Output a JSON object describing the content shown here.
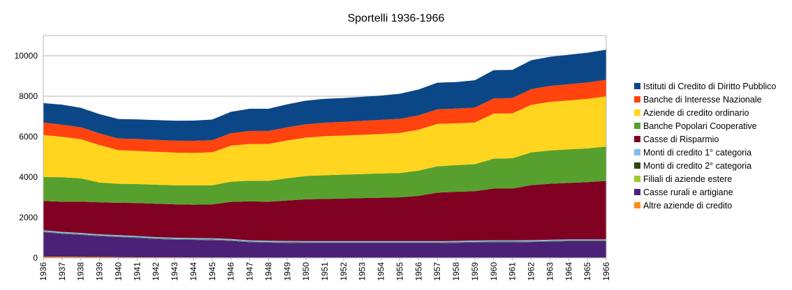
{
  "chart_data": {
    "type": "area",
    "stacked": true,
    "title": "Sportelli 1936-1966",
    "xlabel": "",
    "ylabel": "",
    "ylim": [
      0,
      11000
    ],
    "yticks": [
      0,
      2000,
      4000,
      6000,
      8000,
      10000
    ],
    "grid": "horizontal",
    "legend_position": "right",
    "categories": [
      "1936",
      "1937",
      "1938",
      "1939",
      "1940",
      "1941",
      "1942",
      "1943",
      "1944",
      "1945",
      "1946",
      "1947",
      "1948",
      "1949",
      "1950",
      "1951",
      "1952",
      "1953",
      "1954",
      "1955",
      "1956",
      "1957",
      "1958",
      "1959",
      "1960",
      "1961",
      "1962",
      "1963",
      "1964",
      "1965",
      "1966"
    ],
    "series": [
      {
        "name": "Altre aziende di credito",
        "color": "#ff8c1a",
        "values": [
          60,
          60,
          55,
          50,
          40,
          35,
          30,
          30,
          25,
          25,
          20,
          20,
          20,
          20,
          20,
          20,
          20,
          20,
          20,
          20,
          20,
          20,
          20,
          20,
          20,
          20,
          20,
          20,
          20,
          20,
          20
        ]
      },
      {
        "name": "Casse rurali e artigiane",
        "color": "#4b2077",
        "values": [
          1220,
          1140,
          1090,
          1030,
          1000,
          960,
          910,
          880,
          870,
          860,
          830,
          760,
          740,
          730,
          720,
          720,
          720,
          720,
          720,
          720,
          720,
          720,
          730,
          750,
          760,
          760,
          770,
          790,
          810,
          810,
          810
        ]
      },
      {
        "name": "Filiali di aziende estere",
        "color": "#a3c72e",
        "values": [
          10,
          10,
          10,
          10,
          10,
          10,
          10,
          10,
          10,
          10,
          10,
          10,
          10,
          10,
          10,
          10,
          10,
          10,
          10,
          10,
          10,
          10,
          10,
          10,
          10,
          10,
          10,
          10,
          10,
          10,
          10
        ]
      },
      {
        "name": "Monti di credito 2° categoria",
        "color": "#2e4a12",
        "values": [
          20,
          20,
          20,
          20,
          20,
          20,
          20,
          20,
          20,
          20,
          20,
          20,
          20,
          20,
          20,
          20,
          20,
          20,
          20,
          20,
          20,
          20,
          20,
          20,
          20,
          20,
          20,
          20,
          20,
          20,
          20
        ]
      },
      {
        "name": "Monti di credito 1° categoria",
        "color": "#7dbdf0",
        "values": [
          60,
          60,
          60,
          60,
          60,
          60,
          60,
          60,
          60,
          60,
          60,
          60,
          60,
          60,
          60,
          60,
          60,
          60,
          60,
          60,
          60,
          60,
          60,
          60,
          60,
          60,
          60,
          60,
          60,
          60,
          60
        ]
      },
      {
        "name": "Casse di Risparmio",
        "color": "#800022",
        "values": [
          1450,
          1490,
          1550,
          1580,
          1600,
          1630,
          1650,
          1650,
          1650,
          1670,
          1830,
          1930,
          1930,
          2000,
          2070,
          2090,
          2110,
          2130,
          2150,
          2170,
          2240,
          2400,
          2430,
          2440,
          2560,
          2560,
          2720,
          2770,
          2790,
          2830,
          2890
        ]
      },
      {
        "name": "Banche Popolari Cooperative",
        "color": "#57a02e",
        "values": [
          1180,
          1210,
          1150,
          980,
          940,
          940,
          940,
          940,
          950,
          950,
          1000,
          1020,
          1030,
          1100,
          1150,
          1170,
          1180,
          1190,
          1200,
          1200,
          1250,
          1300,
          1320,
          1340,
          1480,
          1500,
          1620,
          1650,
          1660,
          1670,
          1700
        ]
      },
      {
        "name": "Aziende di credito ordinario",
        "color": "#ffd51f",
        "values": [
          2080,
          2000,
          1940,
          1850,
          1660,
          1640,
          1630,
          1620,
          1610,
          1630,
          1780,
          1820,
          1830,
          1870,
          1900,
          1930,
          1930,
          1940,
          1950,
          1980,
          2020,
          2100,
          2070,
          2060,
          2230,
          2220,
          2350,
          2400,
          2420,
          2450,
          2480
        ]
      },
      {
        "name": "Banche di Interesse Nazionale",
        "color": "#ff430e",
        "values": [
          620,
          600,
          590,
          580,
          580,
          590,
          590,
          590,
          600,
          600,
          620,
          640,
          640,
          650,
          660,
          670,
          680,
          690,
          700,
          700,
          710,
          720,
          730,
          740,
          750,
          760,
          780,
          790,
          800,
          810,
          820
        ]
      },
      {
        "name": "Istituti di Credito di Diritto Pubblico",
        "color": "#0b4787",
        "values": [
          960,
          990,
          960,
          950,
          960,
          970,
          980,
          990,
          1000,
          1020,
          1060,
          1100,
          1100,
          1140,
          1170,
          1180,
          1180,
          1190,
          1200,
          1240,
          1280,
          1320,
          1310,
          1350,
          1400,
          1390,
          1430,
          1440,
          1460,
          1470,
          1490
        ]
      }
    ],
    "legend_order": [
      "Istituti di Credito di Diritto Pubblico",
      "Banche di Interesse Nazionale",
      "Aziende di credito ordinario",
      "Banche Popolari Cooperative",
      "Casse di Risparmio",
      "Monti di credito 1° categoria",
      "Monti di credito 2° categoria",
      "Filiali di aziende estere",
      "Casse rurali e artigiane",
      "Altre aziende di credito"
    ]
  }
}
